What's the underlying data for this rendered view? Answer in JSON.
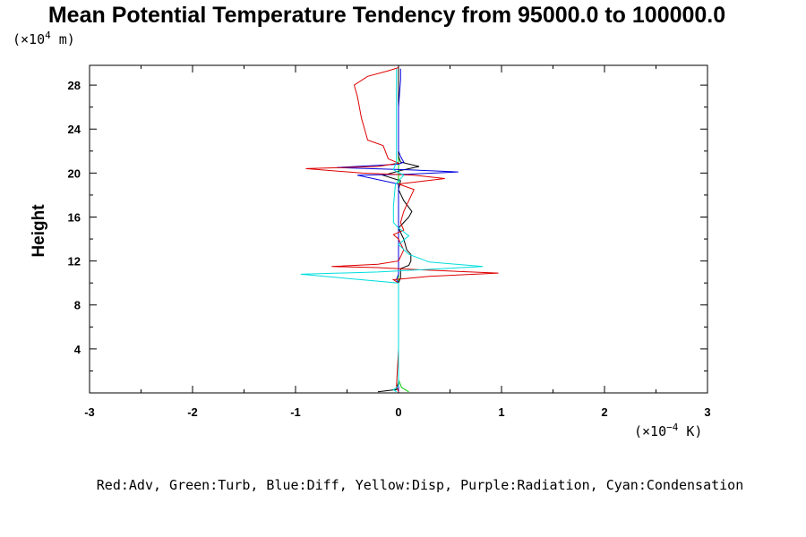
{
  "chart_data": {
    "type": "line",
    "title": "Mean Potential Temperature Tendency from 95000.0 to 100000.0",
    "ylabel": "Height",
    "y_unit": {
      "prefix": "(×10",
      "exp": "4",
      "suffix": " m)"
    },
    "x_unit": {
      "prefix": "(×10",
      "exp": "−4",
      "suffix": " K)"
    },
    "xlim": [
      -3,
      3
    ],
    "ylim": [
      0,
      29.8
    ],
    "x_ticks": [
      -3,
      -2,
      -1,
      0,
      1,
      2,
      3
    ],
    "x_tick_labels": [
      "-3",
      "-2",
      "-1",
      "0",
      "1",
      "2",
      "3"
    ],
    "y_ticks": [
      4,
      8,
      12,
      16,
      20,
      24,
      28
    ],
    "y_tick_labels": [
      "4",
      "8",
      "12",
      "16",
      "20",
      "24",
      "28"
    ],
    "legend_note": "Red:Adv, Green:Turb, Blue:Diff, Yellow:Disp, Purple:Radiation, Cyan:Condensation",
    "series": [
      {
        "color": "#dd0000",
        "values": [
          [
            0.0,
            0.1
          ],
          [
            -0.02,
            0.6
          ],
          [
            0.0,
            4
          ],
          [
            0.0,
            8
          ],
          [
            0.0,
            10
          ],
          [
            -0.05,
            10.3
          ],
          [
            0.3,
            10.6
          ],
          [
            0.97,
            10.9
          ],
          [
            0.2,
            11.2
          ],
          [
            -0.2,
            11.4
          ],
          [
            -0.65,
            11.5
          ],
          [
            -0.2,
            11.7
          ],
          [
            0.0,
            12.0
          ],
          [
            0.05,
            13
          ],
          [
            0.0,
            14
          ],
          [
            -0.05,
            14.4
          ],
          [
            0.05,
            14.8
          ],
          [
            0.02,
            15.5
          ],
          [
            0.05,
            16.5
          ],
          [
            0.1,
            17.5
          ],
          [
            0.15,
            18.5
          ],
          [
            0.0,
            19.0
          ],
          [
            0.45,
            19.5
          ],
          [
            0.15,
            19.8
          ],
          [
            -0.35,
            20.0
          ],
          [
            -0.9,
            20.4
          ],
          [
            -0.2,
            20.6
          ],
          [
            0.0,
            20.9
          ],
          [
            -0.1,
            21.3
          ],
          [
            -0.12,
            21.8
          ],
          [
            -0.15,
            22.5
          ],
          [
            -0.3,
            23
          ],
          [
            -0.33,
            24
          ],
          [
            -0.36,
            25
          ],
          [
            -0.38,
            26
          ],
          [
            -0.4,
            27
          ],
          [
            -0.43,
            28.0
          ],
          [
            -0.3,
            28.8
          ],
          [
            -0.1,
            29.3
          ],
          [
            0.0,
            29.6
          ]
        ]
      },
      {
        "color": "#000000",
        "values": [
          [
            -0.2,
            0.1
          ],
          [
            -0.02,
            0.3
          ],
          [
            0.0,
            1
          ],
          [
            0.0,
            4
          ],
          [
            0.0,
            8
          ],
          [
            0.0,
            10
          ],
          [
            0.02,
            10.5
          ],
          [
            0.02,
            11.3
          ],
          [
            0.1,
            11.6
          ],
          [
            0.12,
            12.0
          ],
          [
            0.12,
            12.6
          ],
          [
            0.08,
            13.0
          ],
          [
            0.05,
            14
          ],
          [
            0.0,
            15.0
          ],
          [
            0.05,
            15.5
          ],
          [
            0.1,
            16.0
          ],
          [
            0.13,
            16.5
          ],
          [
            0.05,
            17.5
          ],
          [
            0.0,
            18.5
          ],
          [
            0.02,
            19.3
          ],
          [
            -0.15,
            19.8
          ],
          [
            0.05,
            20.3
          ],
          [
            0.2,
            20.6
          ],
          [
            0.02,
            21.0
          ],
          [
            0.0,
            21.5
          ],
          [
            0.0,
            24
          ],
          [
            0.0,
            28
          ],
          [
            0.0,
            29.5
          ]
        ]
      },
      {
        "color": "#0000dd",
        "values": [
          [
            0.0,
            0.1
          ],
          [
            0.0,
            4
          ],
          [
            0.0,
            8
          ],
          [
            0.0,
            10
          ],
          [
            -0.02,
            10.3
          ],
          [
            0.0,
            10.8
          ],
          [
            0.0,
            12
          ],
          [
            0.0,
            16
          ],
          [
            0.0,
            19.0
          ],
          [
            -0.4,
            19.8
          ],
          [
            0.1,
            19.9
          ],
          [
            0.58,
            20.1
          ],
          [
            0.1,
            20.3
          ],
          [
            -0.6,
            20.5
          ],
          [
            0.0,
            20.8
          ],
          [
            0.05,
            21.0
          ],
          [
            0.02,
            21.5
          ],
          [
            0.0,
            22
          ],
          [
            0.0,
            26
          ],
          [
            0.02,
            28.5
          ],
          [
            0.02,
            29.5
          ]
        ]
      },
      {
        "color": "#00cc00",
        "values": [
          [
            0.1,
            0.1
          ],
          [
            0.03,
            0.5
          ],
          [
            0.0,
            1.2
          ],
          [
            0.0,
            4
          ],
          [
            0.0,
            8
          ],
          [
            0.0,
            12
          ],
          [
            0.0,
            16
          ],
          [
            0.0,
            20
          ],
          [
            0.0,
            24
          ],
          [
            0.0,
            28
          ],
          [
            0.0,
            29.5
          ]
        ]
      },
      {
        "color": "#dddd00",
        "values": [
          [
            0.0,
            0.1
          ],
          [
            0.0,
            29.5
          ]
        ]
      },
      {
        "color": "#dd00dd",
        "values": [
          [
            0.0,
            0.1
          ],
          [
            0.0,
            29.5
          ]
        ]
      },
      {
        "color": "#00dddd",
        "values": [
          [
            -0.02,
            0.1
          ],
          [
            -0.05,
            0.3
          ],
          [
            0.0,
            0.6
          ],
          [
            0.0,
            4
          ],
          [
            0.0,
            8
          ],
          [
            0.0,
            10.0
          ],
          [
            -0.95,
            10.8
          ],
          [
            -0.2,
            11.0
          ],
          [
            0.82,
            11.5
          ],
          [
            0.3,
            11.9
          ],
          [
            0.1,
            12.6
          ],
          [
            0.0,
            13.5
          ],
          [
            0.1,
            14.3
          ],
          [
            0.0,
            15.0
          ],
          [
            -0.05,
            15.5
          ],
          [
            -0.05,
            17
          ],
          [
            -0.03,
            19
          ],
          [
            0.05,
            19.8
          ],
          [
            -0.05,
            20.3
          ],
          [
            -0.02,
            21.0
          ],
          [
            -0.02,
            22
          ],
          [
            -0.02,
            25
          ],
          [
            -0.02,
            28
          ],
          [
            -0.02,
            29.5
          ]
        ]
      }
    ]
  }
}
